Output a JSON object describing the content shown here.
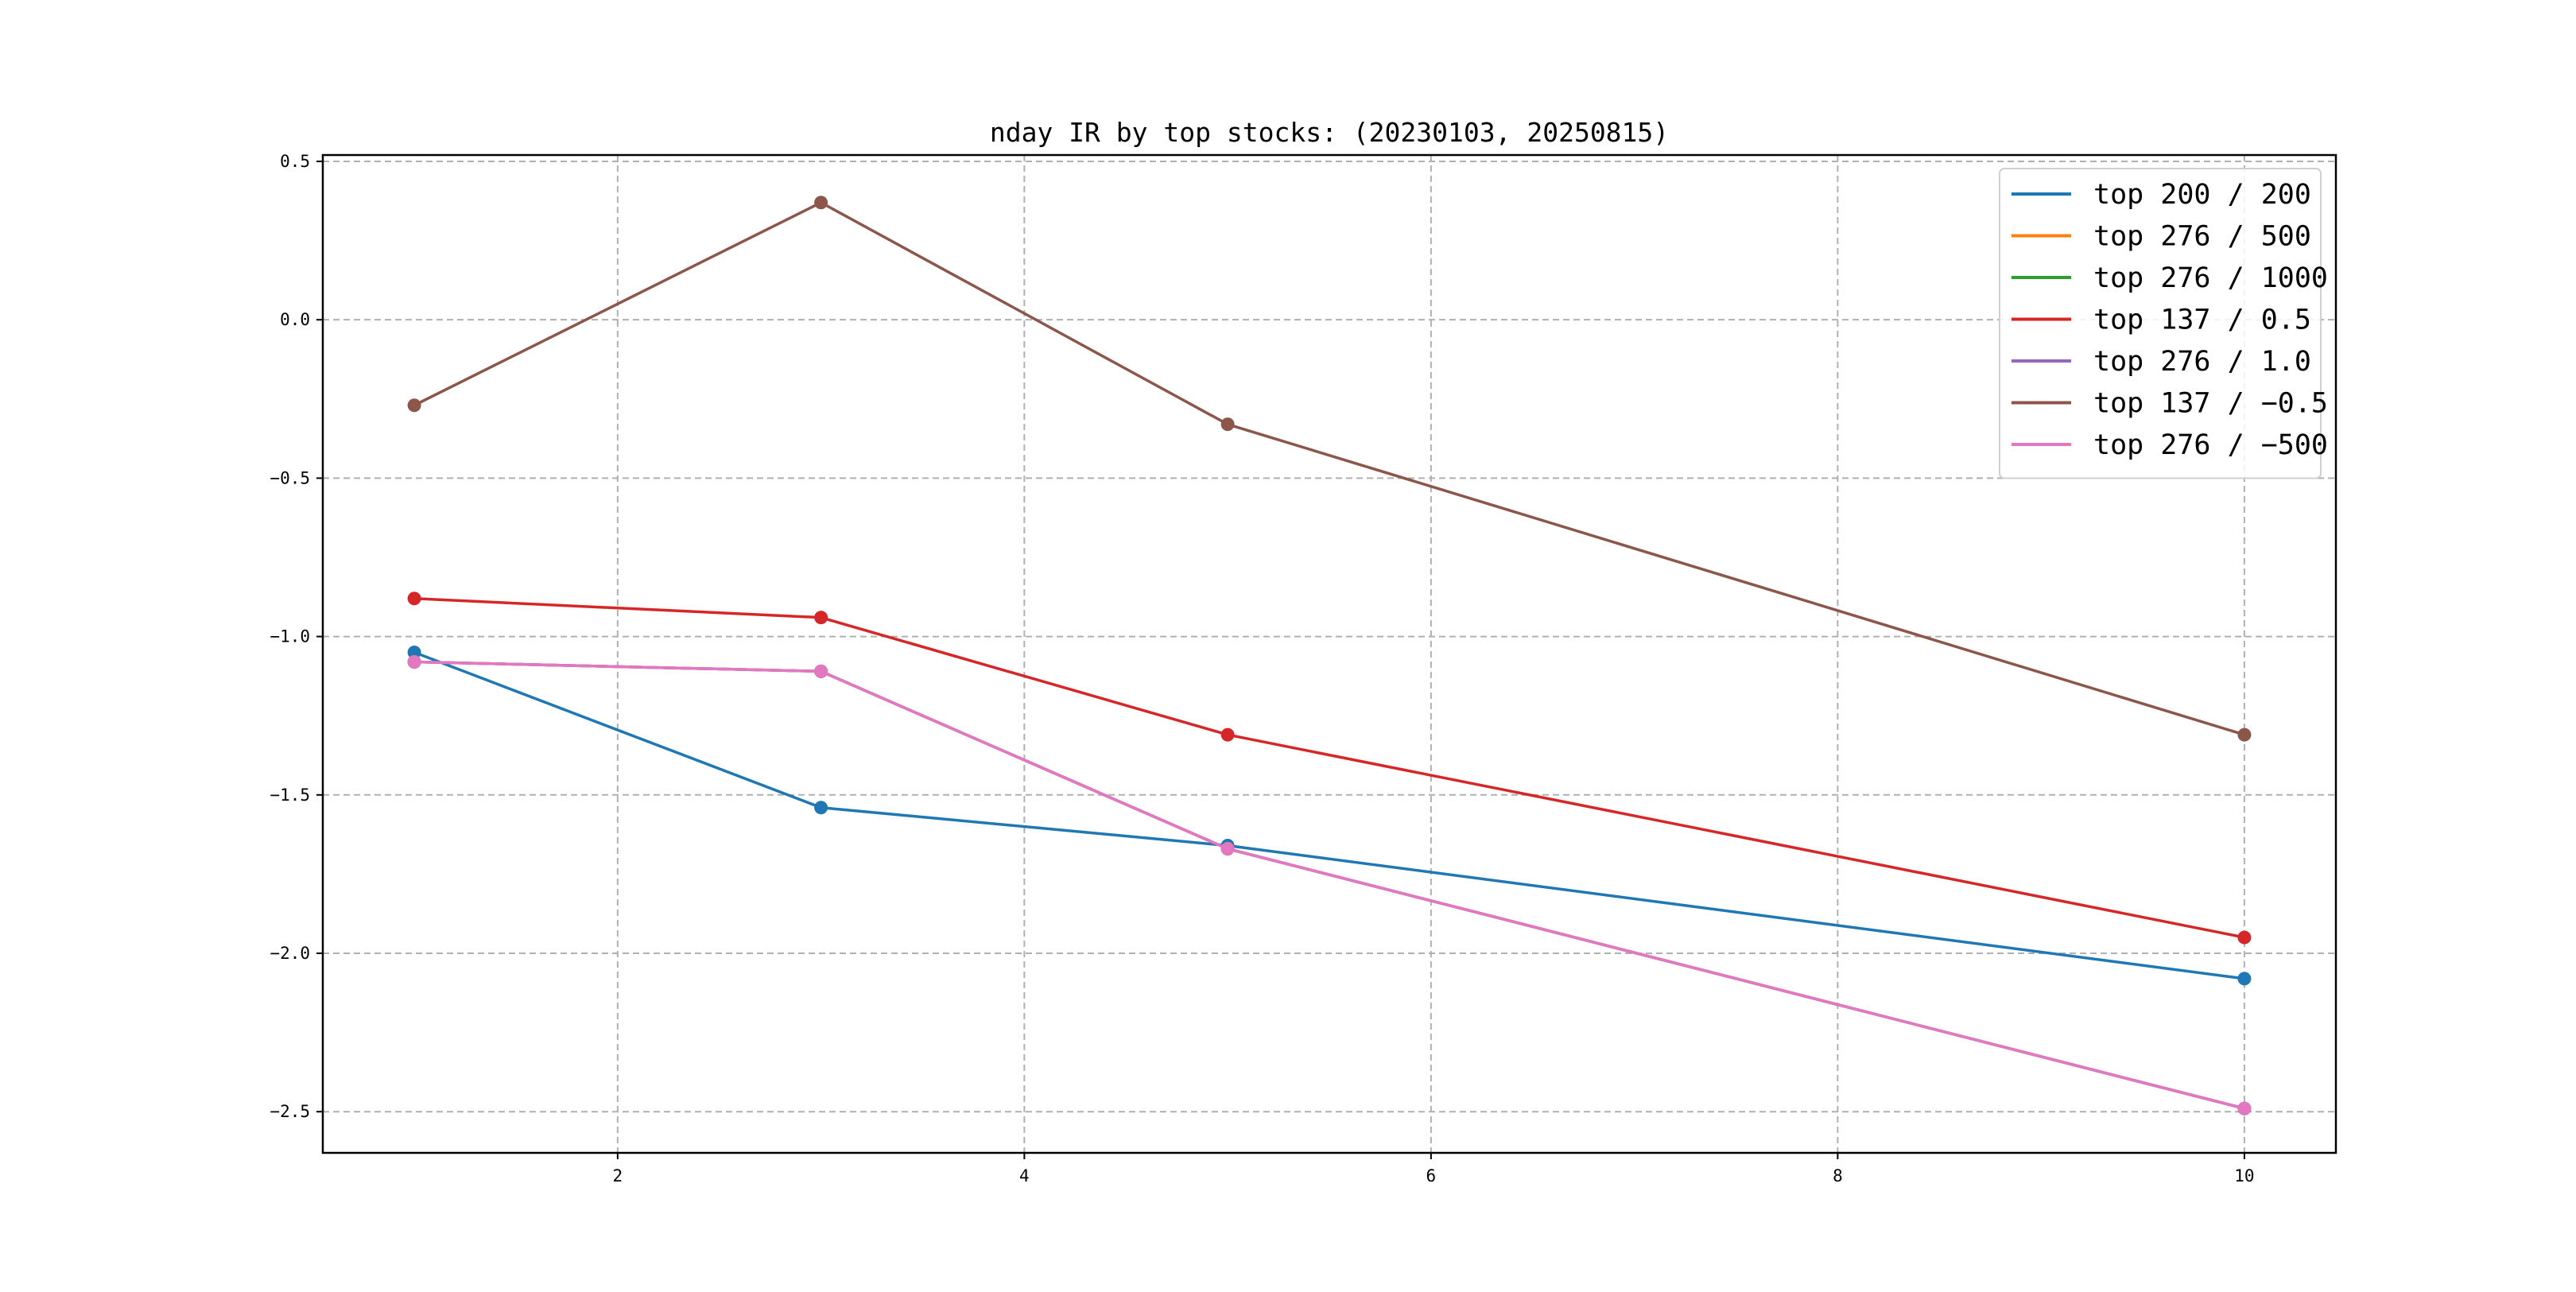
{
  "chart_data": {
    "type": "line",
    "title": "nday IR by top stocks: (20230103, 20250815)",
    "xlabel": "",
    "ylabel": "",
    "x": [
      1,
      3,
      5,
      10
    ],
    "xlim": [
      0.55,
      10.45
    ],
    "ylim": [
      -2.63,
      0.52
    ],
    "xticks": [
      2,
      4,
      6,
      8,
      10
    ],
    "yticks": [
      0.5,
      0.0,
      -0.5,
      -1.0,
      -1.5,
      -2.0,
      -2.5
    ],
    "xtick_labels": [
      "2",
      "4",
      "6",
      "8",
      "10"
    ],
    "ytick_labels": [
      "0.5",
      "0.0",
      "−0.5",
      "−1.0",
      "−1.5",
      "−2.0",
      "−2.5"
    ],
    "grid": true,
    "legend_position": "top-right",
    "markers": "circle",
    "series": [
      {
        "name": "top 200 / 200",
        "color": "#1f77b4",
        "values": [
          -1.05,
          -1.54,
          -1.66,
          -2.08
        ]
      },
      {
        "name": "top 276 / 500",
        "color": "#ff7f0e",
        "values": [
          -1.08,
          -1.11,
          -1.67,
          -2.49
        ]
      },
      {
        "name": "top 276 / 1000",
        "color": "#2ca02c",
        "values": [
          -1.08,
          -1.11,
          -1.67,
          -2.49
        ]
      },
      {
        "name": "top 137 / 0.5",
        "color": "#d62728",
        "values": [
          -0.88,
          -0.94,
          -1.31,
          -1.95
        ]
      },
      {
        "name": "top 276 / 1.0",
        "color": "#9467bd",
        "values": [
          -1.08,
          -1.11,
          -1.67,
          -2.49
        ]
      },
      {
        "name": "top 137 / −0.5",
        "color": "#8c564b",
        "values": [
          -0.27,
          0.37,
          -0.33,
          -1.31
        ]
      },
      {
        "name": "top 276 / −500",
        "color": "#e377c2",
        "values": [
          -1.08,
          -1.11,
          -1.67,
          -2.49
        ]
      }
    ]
  }
}
